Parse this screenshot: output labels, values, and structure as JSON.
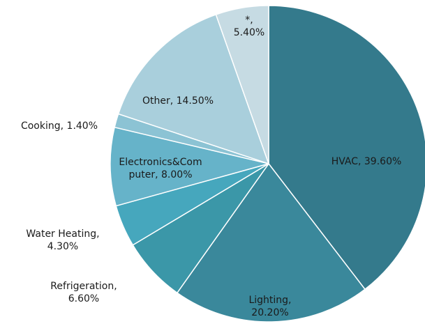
{
  "chart_data": {
    "type": "pie",
    "labels": [
      "HVAC, 39.60%",
      "Lighting, 20.20%",
      "Refrigeration, 6.60%",
      "Water Heating, 4.30%",
      "Electronics&Computer, 8.00%",
      "Cooking, 1.40%",
      "Other, 14.50%",
      "*, 5.40%"
    ],
    "values": [
      39.6,
      20.2,
      6.6,
      4.3,
      8.0,
      1.4,
      14.5,
      5.4
    ],
    "colors": [
      "#347a8c",
      "#3a889b",
      "#3b97a8",
      "#46a7bd",
      "#66b3c9",
      "#8cc3d4",
      "#a9cfdc",
      "#c6dbe3"
    ]
  }
}
